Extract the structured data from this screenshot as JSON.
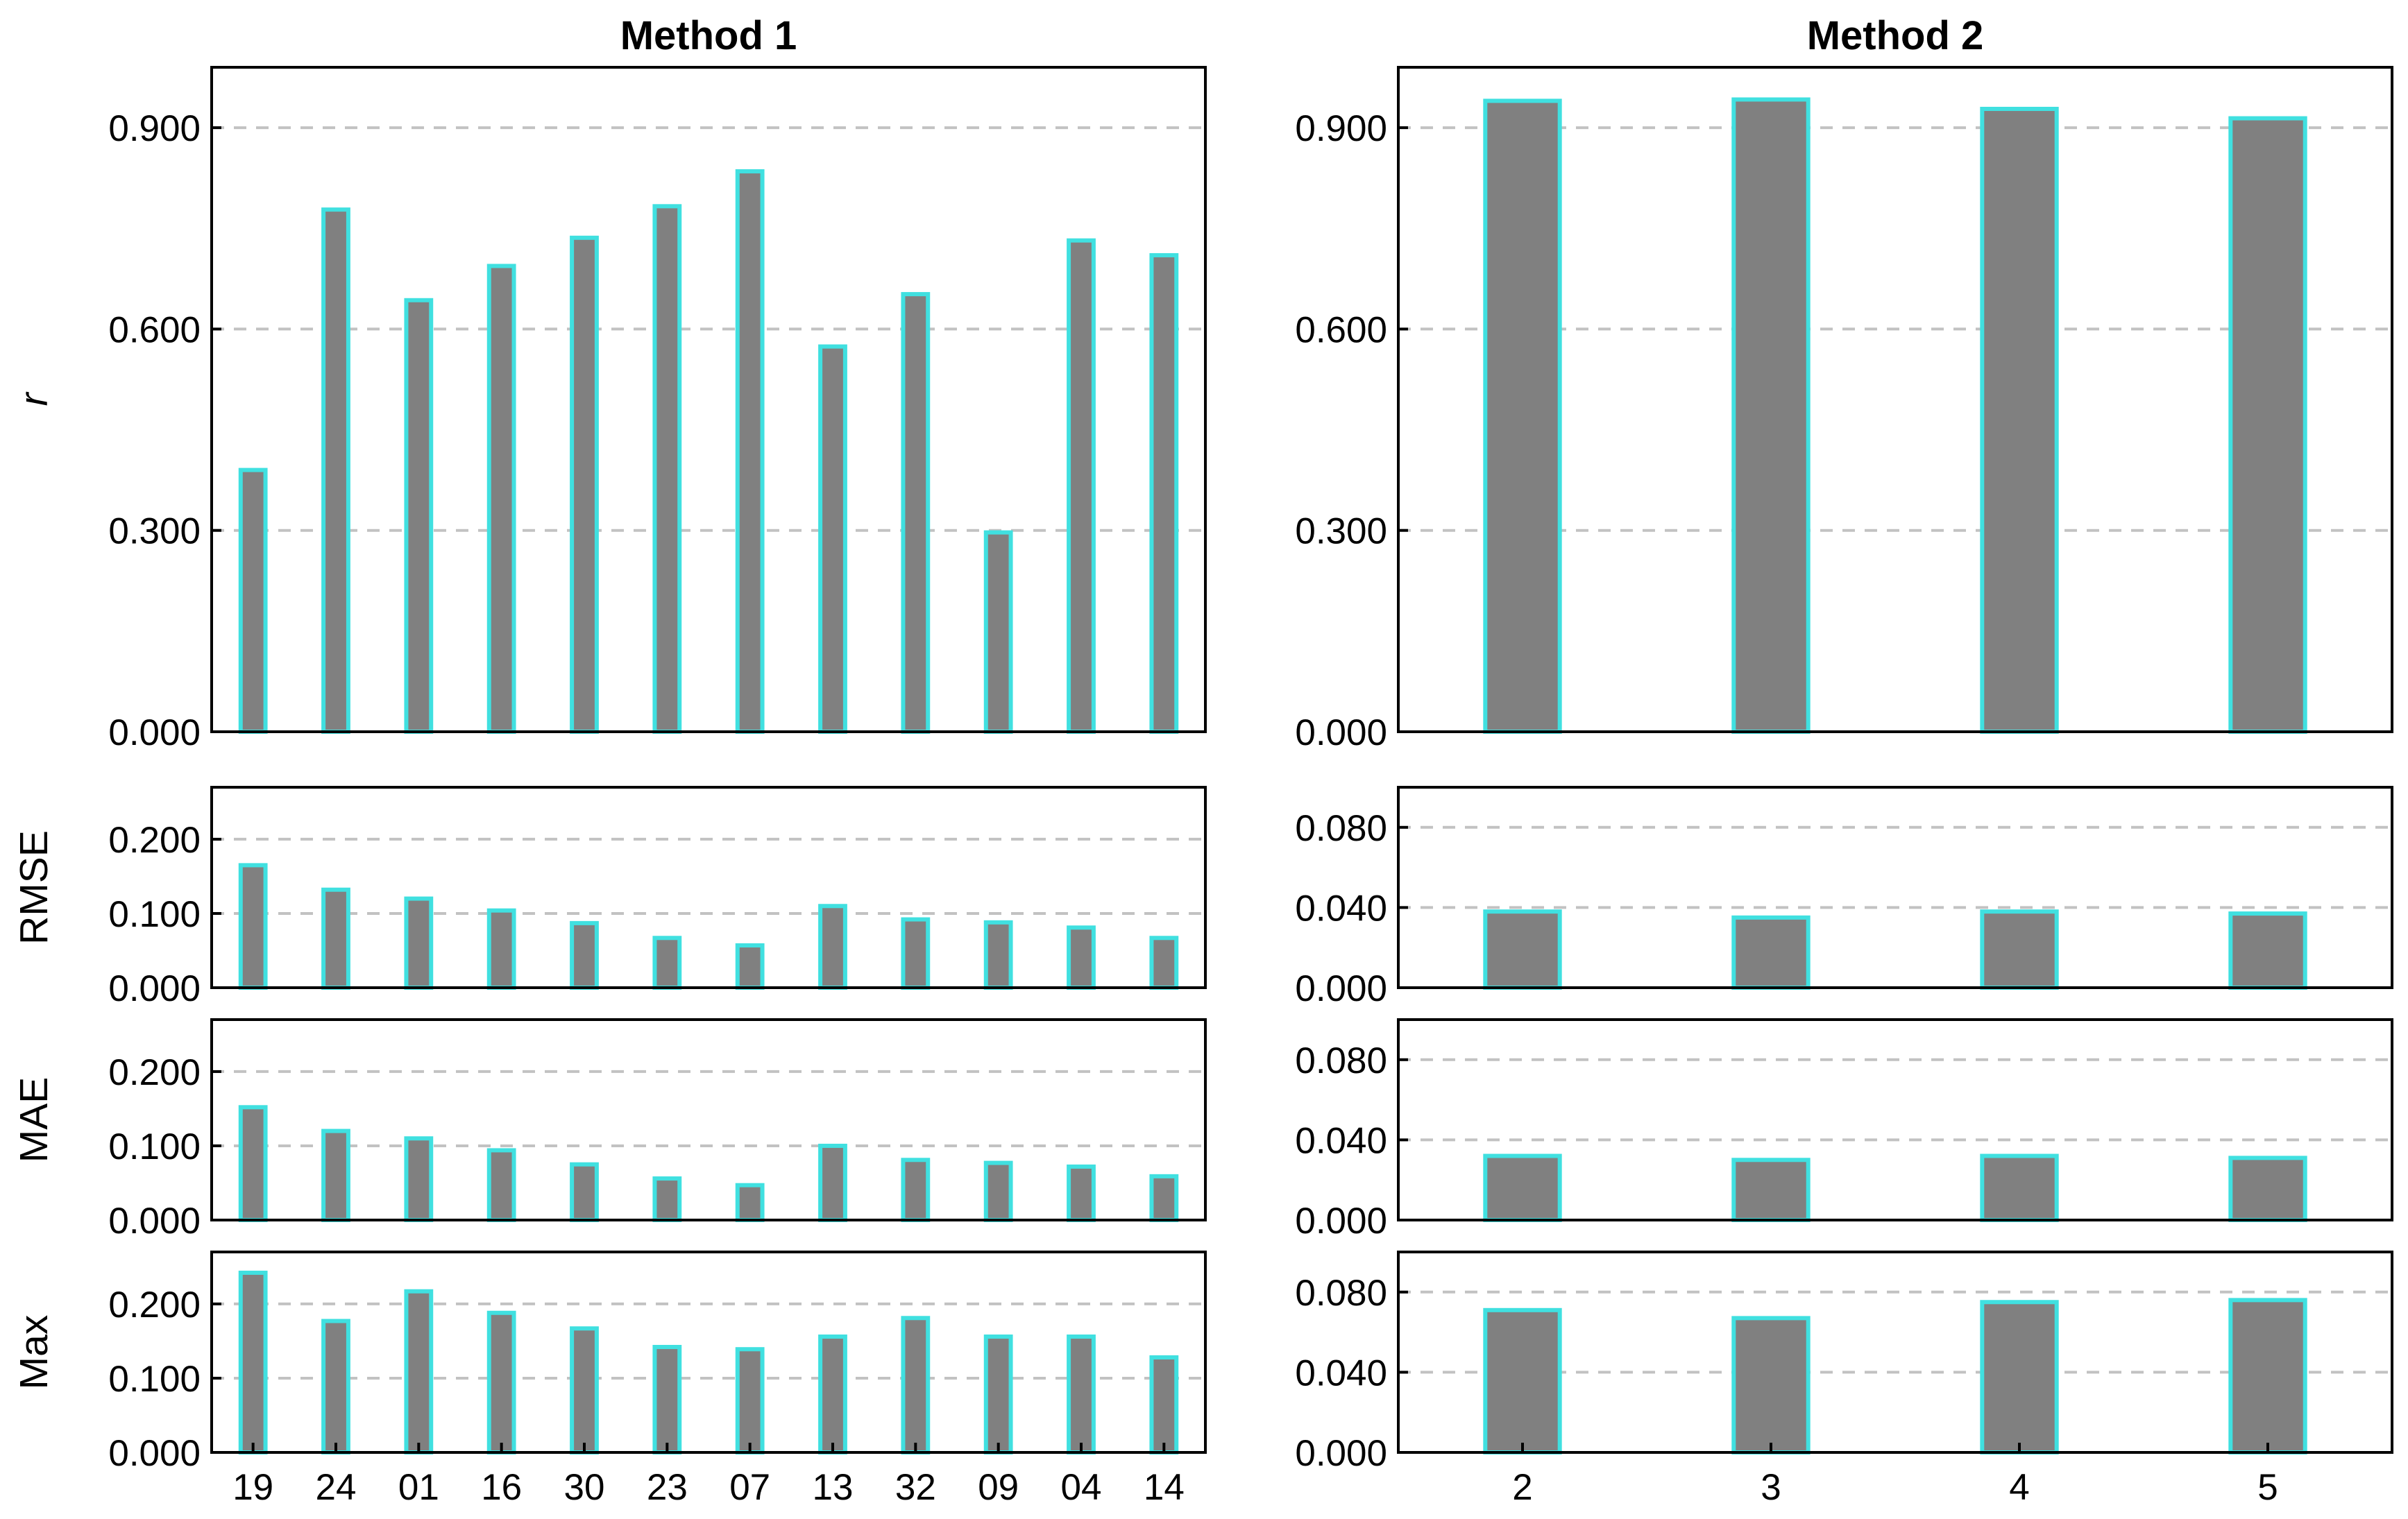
{
  "colors": {
    "bar_fill": "#808080",
    "bar_edge": "#40e0e0",
    "grid": "#c2c2c2"
  },
  "chart_data": [
    {
      "type": "bar",
      "panel": "method1-r",
      "title": "Method 1",
      "ylabel": "r",
      "categories": [
        "19",
        "24",
        "01",
        "16",
        "30",
        "23",
        "07",
        "13",
        "32",
        "09",
        "04",
        "14"
      ],
      "values": [
        0.39,
        0.778,
        0.643,
        0.694,
        0.736,
        0.783,
        0.835,
        0.574,
        0.652,
        0.297,
        0.732,
        0.71
      ],
      "yticks": [
        "0.000",
        "0.300",
        "0.600",
        "0.900"
      ],
      "ylim": [
        0,
        0.99
      ],
      "grid": true
    },
    {
      "type": "bar",
      "panel": "method1-rmse",
      "ylabel": "RMSE",
      "categories": [
        "19",
        "24",
        "01",
        "16",
        "30",
        "23",
        "07",
        "13",
        "32",
        "09",
        "04",
        "14"
      ],
      "values": [
        0.165,
        0.132,
        0.12,
        0.104,
        0.087,
        0.067,
        0.057,
        0.11,
        0.092,
        0.088,
        0.081,
        0.067
      ],
      "yticks": [
        "0.000",
        "0.100",
        "0.200"
      ],
      "ylim": [
        0,
        0.27
      ],
      "grid": true
    },
    {
      "type": "bar",
      "panel": "method1-mae",
      "ylabel": "MAE",
      "categories": [
        "19",
        "24",
        "01",
        "16",
        "30",
        "23",
        "07",
        "13",
        "32",
        "09",
        "04",
        "14"
      ],
      "values": [
        0.152,
        0.12,
        0.11,
        0.094,
        0.075,
        0.056,
        0.047,
        0.1,
        0.081,
        0.077,
        0.072,
        0.059
      ],
      "yticks": [
        "0.000",
        "0.100",
        "0.200"
      ],
      "ylim": [
        0,
        0.27
      ],
      "grid": true
    },
    {
      "type": "bar",
      "panel": "method1-max",
      "ylabel": "Max",
      "categories": [
        "19",
        "24",
        "01",
        "16",
        "30",
        "23",
        "07",
        "13",
        "32",
        "09",
        "04",
        "14"
      ],
      "values": [
        0.242,
        0.177,
        0.217,
        0.188,
        0.167,
        0.142,
        0.139,
        0.156,
        0.181,
        0.156,
        0.156,
        0.128
      ],
      "yticks": [
        "0.000",
        "0.100",
        "0.200"
      ],
      "ylim": [
        0,
        0.27
      ],
      "grid": true
    },
    {
      "type": "bar",
      "panel": "method2-r",
      "title": "Method 2",
      "categories": [
        "2",
        "3",
        "4",
        "5"
      ],
      "values": [
        0.94,
        0.942,
        0.928,
        0.914
      ],
      "yticks": [
        "0.000",
        "0.300",
        "0.600",
        "0.900"
      ],
      "ylim": [
        0,
        0.99
      ],
      "grid": true
    },
    {
      "type": "bar",
      "panel": "method2-rmse",
      "categories": [
        "2",
        "3",
        "4",
        "5"
      ],
      "values": [
        0.038,
        0.035,
        0.038,
        0.037
      ],
      "yticks": [
        "0.000",
        "0.040",
        "0.080"
      ],
      "ylim": [
        0,
        0.1
      ],
      "grid": true
    },
    {
      "type": "bar",
      "panel": "method2-mae",
      "categories": [
        "2",
        "3",
        "4",
        "5"
      ],
      "values": [
        0.032,
        0.03,
        0.032,
        0.031
      ],
      "yticks": [
        "0.000",
        "0.040",
        "0.080"
      ],
      "ylim": [
        0,
        0.1
      ],
      "grid": true
    },
    {
      "type": "bar",
      "panel": "method2-max",
      "categories": [
        "2",
        "3",
        "4",
        "5"
      ],
      "values": [
        0.071,
        0.067,
        0.075,
        0.076
      ],
      "yticks": [
        "0.000",
        "0.040",
        "0.080"
      ],
      "ylim": [
        0,
        0.1
      ],
      "grid": true
    }
  ]
}
